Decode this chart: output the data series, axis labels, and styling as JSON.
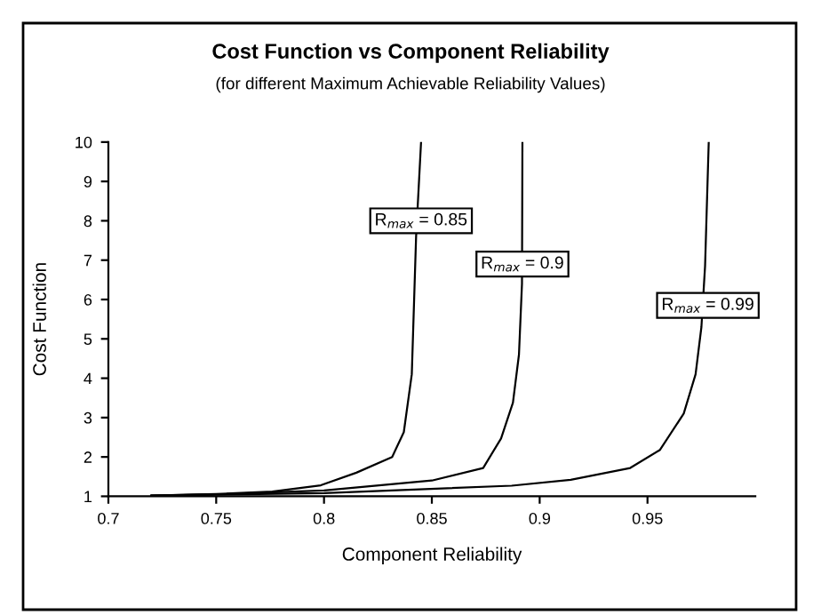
{
  "chart_data": {
    "type": "line",
    "title": "Cost Function vs Component Reliability",
    "subtitle": "(for different Maximum Achievable Reliability Values)",
    "xlabel": "Component Reliability",
    "ylabel": "Cost Function",
    "series": [
      {
        "color": "#000000",
        "x": [
          0.72,
          0.75,
          0.776,
          0.7985,
          0.815,
          0.8316,
          0.837,
          0.8407,
          0.8427,
          0.845
        ],
        "values": [
          1.02,
          1.06,
          1.12,
          1.28,
          1.6,
          2.0,
          2.63,
          4.1,
          7.6,
          10
        ]
      },
      {
        "color": "#000000",
        "x": [
          0.72,
          0.75,
          0.8,
          0.85,
          0.8738,
          0.8821,
          0.8876,
          0.8904,
          0.8918,
          0.892
        ],
        "values": [
          1.02,
          1.05,
          1.15,
          1.4,
          1.72,
          2.47,
          3.38,
          4.6,
          6.4,
          10
        ]
      },
      {
        "color": "#000000",
        "x": [
          0.72,
          0.8,
          0.887,
          0.9144,
          0.942,
          0.9558,
          0.9668,
          0.9723,
          0.975,
          0.9767,
          0.9784
        ],
        "values": [
          1.02,
          1.08,
          1.27,
          1.42,
          1.72,
          2.18,
          3.1,
          4.1,
          5.3,
          6.85,
          10
        ]
      }
    ],
    "annotations": [
      {
        "text": "R$_{max}$ = 0.85",
        "x": 0.845,
        "y": 8.0
      },
      {
        "text": "R$_{max}$ = 0.9",
        "x": 0.892,
        "y": 6.9
      },
      {
        "text": "R$_{max}$ = 0.99",
        "x": 0.978,
        "y": 5.85
      }
    ],
    "xlim": [
      0.7,
      1.0
    ],
    "xticks": [
      0.7,
      0.75,
      0.8,
      0.85,
      0.9,
      0.95
    ],
    "ylim": [
      1,
      10
    ],
    "yticks": [
      1,
      2,
      3,
      4,
      5,
      6,
      7,
      8,
      9,
      10
    ],
    "marker": "none",
    "line_style": "solid"
  }
}
